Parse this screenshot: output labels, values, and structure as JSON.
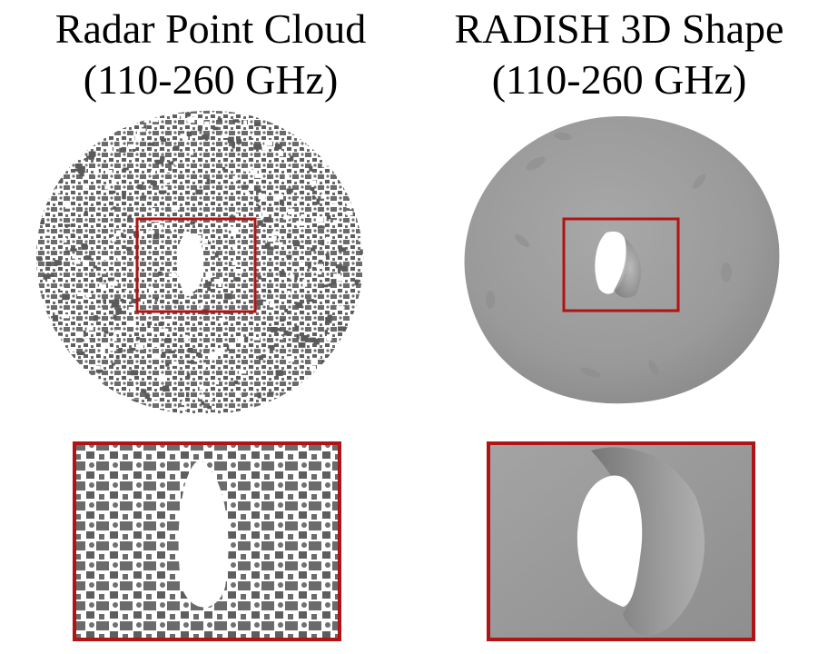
{
  "left_panel": {
    "title_line1": "Radar Point Cloud",
    "title_line2": "(110-260 GHz)"
  },
  "right_panel": {
    "title_line1": "RADISH 3D Shape",
    "title_line2": "(110-260 GHz)"
  },
  "colors": {
    "highlight_box": "#b01414",
    "point_color": "#6b6b6b",
    "surface_color": "#9a9a9a"
  }
}
